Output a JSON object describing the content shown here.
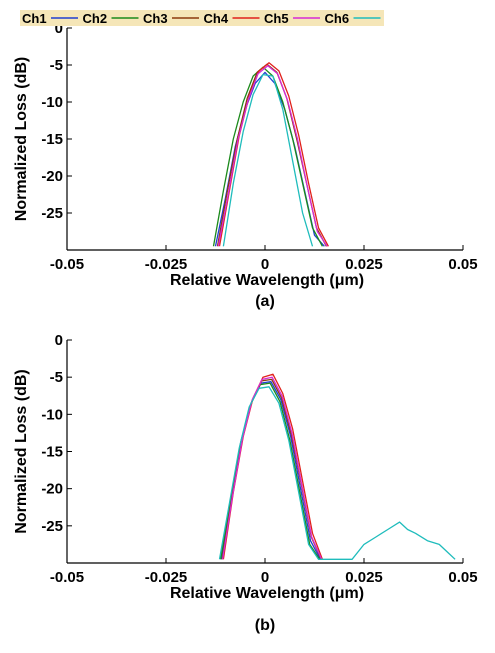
{
  "chart_data": [
    {
      "type": "line",
      "panel": "(a)",
      "caption": "(a)",
      "xlabel": "Relative Wavelength (μm)",
      "ylabel": "Normalized Loss (dB)",
      "xlim": [
        -0.05,
        0.05
      ],
      "ylim": [
        -30,
        0
      ],
      "xticks": [
        -0.05,
        -0.025,
        0,
        0.025,
        0.05
      ],
      "xtick_labels": [
        "-0.05",
        "-0.025",
        "0",
        "0.025",
        "0.05"
      ],
      "yticks": [
        0,
        -5,
        -10,
        -15,
        -20,
        -25
      ],
      "ytick_labels": [
        "0",
        "-5",
        "-10",
        "-15",
        "-20",
        "-25"
      ],
      "grid": false,
      "legend": {
        "placement": "top-left",
        "orientation": "horizontal",
        "background": "#f5e6b8"
      },
      "series": [
        {
          "name": "Ch1",
          "color": "#1f3fd0",
          "x": [
            -0.0125,
            -0.01,
            -0.0075,
            -0.005,
            -0.0025,
            0,
            0.0025,
            0.005,
            0.0075,
            0.01,
            0.0125,
            0.015
          ],
          "y": [
            -29.5,
            -23,
            -16,
            -11,
            -7.5,
            -6,
            -7.5,
            -11,
            -16,
            -22,
            -28,
            -29.5
          ]
        },
        {
          "name": "Ch2",
          "color": "#1b8a1b",
          "x": [
            -0.013,
            -0.0105,
            -0.008,
            -0.0055,
            -0.003,
            -0.0005,
            0.002,
            0.0045,
            0.007,
            0.0095,
            0.012,
            0.0145
          ],
          "y": [
            -29.5,
            -22,
            -15,
            -10,
            -6.5,
            -5.3,
            -6.5,
            -10,
            -15,
            -21,
            -27,
            -29.5
          ]
        },
        {
          "name": "Ch3",
          "color": "#8b3a0e",
          "x": [
            -0.012,
            -0.0095,
            -0.007,
            -0.0045,
            -0.002,
            0.0005,
            0.003,
            0.0055,
            0.008,
            0.0105,
            0.013,
            0.0155
          ],
          "y": [
            -29.5,
            -22,
            -15,
            -9.5,
            -6,
            -4.9,
            -6,
            -9.5,
            -15,
            -21,
            -27,
            -29.5
          ]
        },
        {
          "name": "Ch4",
          "color": "#e0201a",
          "x": [
            -0.0115,
            -0.009,
            -0.0065,
            -0.004,
            -0.0015,
            0.001,
            0.0035,
            0.006,
            0.0085,
            0.011,
            0.0135,
            0.016
          ],
          "y": [
            -29.5,
            -22,
            -14.5,
            -9.2,
            -5.8,
            -4.7,
            -5.8,
            -9.2,
            -14.5,
            -21,
            -27,
            -29.5
          ]
        },
        {
          "name": "Ch5",
          "color": "#d62ad6",
          "x": [
            -0.0118,
            -0.0093,
            -0.0068,
            -0.0043,
            -0.0018,
            0.0007,
            0.0032,
            0.0057,
            0.0082,
            0.0107,
            0.0132,
            0.0157
          ],
          "y": [
            -29.5,
            -22.5,
            -15,
            -9.8,
            -6.2,
            -5.1,
            -6.2,
            -9.8,
            -15,
            -21.5,
            -27.5,
            -29.5
          ]
        },
        {
          "name": "Ch6",
          "color": "#1fbcbc",
          "x": [
            -0.0105,
            -0.008,
            -0.0055,
            -0.003,
            -0.0005,
            0.002,
            0.0045,
            0.007,
            0.0095,
            0.012
          ],
          "y": [
            -29.5,
            -21,
            -14,
            -9,
            -6.3,
            -6.5,
            -11,
            -18,
            -25,
            -29.5
          ]
        }
      ]
    },
    {
      "type": "line",
      "panel": "(b)",
      "caption": "(b)",
      "xlabel": "Relative Wavelength (μm)",
      "ylabel": "Normalized Loss (dB)",
      "xlim": [
        -0.05,
        0.05
      ],
      "ylim": [
        -30,
        0
      ],
      "xticks": [
        -0.05,
        -0.025,
        0,
        0.025,
        0.05
      ],
      "xtick_labels": [
        "-0.05",
        "-0.025",
        "0",
        "0.025",
        "0.05"
      ],
      "yticks": [
        0,
        -5,
        -10,
        -15,
        -20,
        -25
      ],
      "ytick_labels": [
        "0",
        "-5",
        "-10",
        "-15",
        "-20",
        "-25"
      ],
      "grid": false,
      "series": [
        {
          "name": "Ch1",
          "color": "#1f3fd0",
          "x": [
            -0.011,
            -0.0085,
            -0.006,
            -0.0035,
            -0.001,
            0.0015,
            0.004,
            0.0065,
            0.009,
            0.0115,
            0.014
          ],
          "y": [
            -29.5,
            -21,
            -13.5,
            -8.5,
            -5.8,
            -5.6,
            -8,
            -13,
            -20,
            -27,
            -29.5
          ]
        },
        {
          "name": "Ch2",
          "color": "#1b8a1b",
          "x": [
            -0.0112,
            -0.0087,
            -0.0062,
            -0.0037,
            -0.0012,
            0.0013,
            0.0038,
            0.0063,
            0.0088,
            0.0113,
            0.0138
          ],
          "y": [
            -29.5,
            -21.5,
            -14,
            -8.8,
            -6,
            -5.8,
            -8.3,
            -13.5,
            -20.5,
            -27.5,
            -29.5
          ]
        },
        {
          "name": "Ch3",
          "color": "#8b3a0e",
          "x": [
            -0.0108,
            -0.0083,
            -0.0058,
            -0.0033,
            -0.0008,
            0.0017,
            0.0042,
            0.0067,
            0.0092,
            0.0117,
            0.0142
          ],
          "y": [
            -29.5,
            -21,
            -13.5,
            -8.2,
            -5.5,
            -5.3,
            -7.8,
            -12.8,
            -19.5,
            -26.5,
            -29.5
          ]
        },
        {
          "name": "Ch4",
          "color": "#e0201a",
          "x": [
            -0.0105,
            -0.008,
            -0.0055,
            -0.003,
            -0.0005,
            0.002,
            0.0045,
            0.007,
            0.0095,
            0.012,
            0.0145
          ],
          "y": [
            -29.5,
            -20.5,
            -13,
            -7.8,
            -5,
            -4.6,
            -7.2,
            -12,
            -19,
            -26,
            -29.5
          ]
        },
        {
          "name": "Ch5",
          "color": "#d62ad6",
          "x": [
            -0.0107,
            -0.0082,
            -0.0057,
            -0.0032,
            -0.0007,
            0.0018,
            0.0043,
            0.0068,
            0.0093,
            0.0118,
            0.0143
          ],
          "y": [
            -29.5,
            -21,
            -13.3,
            -8,
            -5.3,
            -5,
            -7.5,
            -12.5,
            -19.5,
            -26.5,
            -29.5
          ]
        },
        {
          "name": "Ch6",
          "color": "#1fbcbc",
          "x": [
            -0.0115,
            -0.009,
            -0.0065,
            -0.004,
            -0.0015,
            0.001,
            0.0035,
            0.006,
            0.0085,
            0.011,
            0.0135,
            0.016,
            0.022,
            0.025,
            0.028,
            0.031,
            0.034,
            0.036,
            0.038,
            0.041,
            0.044,
            0.046,
            0.048
          ],
          "y": [
            -29.5,
            -22,
            -14.5,
            -9,
            -6.5,
            -6.3,
            -8.5,
            -13.5,
            -20.5,
            -27.5,
            -29.5,
            -29.5,
            -29.5,
            -27.5,
            -26.5,
            -25.5,
            -24.5,
            -25.5,
            -26,
            -27,
            -27.5,
            -28.5,
            -29.5
          ]
        }
      ]
    }
  ]
}
